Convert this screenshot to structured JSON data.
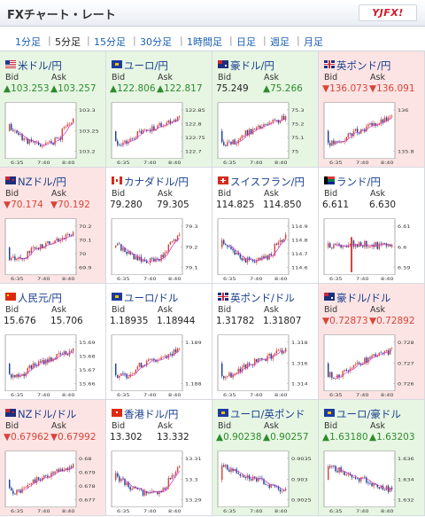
{
  "header": {
    "title": "FXチャート・レート",
    "logo": "YJFX!"
  },
  "tabs": [
    "1分足",
    "5分足",
    "15分足",
    "30分足",
    "1時間足",
    "日足",
    "週足",
    "月足"
  ],
  "active_tab": 1,
  "bid_label": "Bid",
  "ask_label": "Ask",
  "colors": {
    "up": "#2e8b2e",
    "down": "#d8443a",
    "up_bg": "#e7f6e3",
    "down_bg": "#fce4e4",
    "candle_up": "#d8443a",
    "candle_down": "#1c3f9a",
    "ma": "#cc33cc"
  },
  "cells": [
    {
      "name": "米ドル/円",
      "flag": "us",
      "bid": "▲103.253",
      "ask": "▲103.257",
      "trend": "up",
      "chart_data": {
        "type": "candlestick",
        "x_ticks": [
          "6:35",
          "7:40",
          "8:40"
        ],
        "y_ticks": [
          "103.3",
          "103.25",
          "103.2"
        ],
        "seed": 11,
        "shape": "dip"
      }
    },
    {
      "name": "ユーロ/円",
      "flag": "eu",
      "bid": "▲122.806",
      "ask": "▲122.817",
      "trend": "up",
      "chart_data": {
        "type": "candlestick",
        "x_ticks": [
          "6:35",
          "7:40",
          "8:40"
        ],
        "y_ticks": [
          "122.85",
          "122.8",
          "122.75",
          "122.7"
        ],
        "seed": 12,
        "shape": "rise"
      }
    },
    {
      "name": "豪ドル/円",
      "flag": "au",
      "bid": "75.249",
      "ask": "▲75.266",
      "trend": "up",
      "chart_data": {
        "type": "candlestick",
        "x_ticks": [
          "6:35",
          "7:40",
          "8:40"
        ],
        "y_ticks": [
          "75.3",
          "75.2",
          "75.1",
          "75"
        ],
        "seed": 13,
        "shape": "rise"
      }
    },
    {
      "name": "英ポンド/円",
      "flag": "gb",
      "bid": "▼136.073",
      "ask": "▼136.091",
      "trend": "down",
      "chart_data": {
        "type": "candlestick",
        "x_ticks": [
          "6:35",
          "7:40",
          "8:40"
        ],
        "y_ticks": [
          "136",
          "135.8"
        ],
        "seed": 14,
        "shape": "rise"
      }
    },
    {
      "name": "NZドル/円",
      "flag": "nz",
      "bid": "▼70.174",
      "ask": "▼70.192",
      "trend": "down",
      "chart_data": {
        "type": "candlestick",
        "x_ticks": [
          "6:35",
          "7:40",
          "8:40"
        ],
        "y_ticks": [
          "70.2",
          "70.1",
          "70",
          "69.9"
        ],
        "seed": 21,
        "shape": "rise"
      }
    },
    {
      "name": "カナダドル/円",
      "flag": "ca",
      "bid": "79.280",
      "ask": "79.305",
      "trend": "flat",
      "chart_data": {
        "type": "candlestick",
        "x_ticks": [
          "6:35",
          "7:40",
          "8:40"
        ],
        "y_ticks": [
          "79.3",
          "79.2",
          "79.1"
        ],
        "seed": 22,
        "shape": "dip"
      }
    },
    {
      "name": "スイスフラン/円",
      "flag": "ch",
      "bid": "114.825",
      "ask": "114.850",
      "trend": "flat",
      "chart_data": {
        "type": "candlestick",
        "x_ticks": [
          "6:35",
          "7:40",
          "8:40"
        ],
        "y_ticks": [
          "114.9",
          "114.8",
          "114.7",
          "114.6"
        ],
        "seed": 23,
        "shape": "dip"
      }
    },
    {
      "name": "ランド/円",
      "flag": "za",
      "bid": "6.611",
      "ask": "6.630",
      "trend": "flat",
      "chart_data": {
        "type": "candlestick",
        "x_ticks": [
          "6:35",
          "7:40",
          "8:40"
        ],
        "y_ticks": [
          "6.61",
          "6.6",
          "6.59"
        ],
        "seed": 24,
        "shape": "flat"
      }
    },
    {
      "name": "人民元/円",
      "flag": "cn",
      "bid": "15.676",
      "ask": "15.706",
      "trend": "flat",
      "chart_data": {
        "type": "candlestick",
        "x_ticks": [
          "6:35",
          "7:40",
          "8:40"
        ],
        "y_ticks": [
          "15.69",
          "15.68",
          "15.67",
          "15.66"
        ],
        "seed": 31,
        "shape": "rise"
      }
    },
    {
      "name": "ユーロ/ドル",
      "flag": "eu",
      "bid": "1.18935",
      "ask": "1.18944",
      "trend": "flat",
      "chart_data": {
        "type": "candlestick",
        "x_ticks": [
          "6:35",
          "7:40",
          "8:40"
        ],
        "y_ticks": [
          "1.189",
          "1.188"
        ],
        "seed": 32,
        "shape": "rise"
      }
    },
    {
      "name": "英ポンド/ドル",
      "flag": "gb",
      "bid": "1.31782",
      "ask": "1.31807",
      "trend": "flat",
      "chart_data": {
        "type": "candlestick",
        "x_ticks": [
          "6:35",
          "7:40",
          "8:40"
        ],
        "y_ticks": [
          "1.318",
          "1.316",
          "1.314"
        ],
        "seed": 33,
        "shape": "rise"
      }
    },
    {
      "name": "豪ドル/ドル",
      "flag": "au",
      "bid": "▼0.72873",
      "ask": "▼0.72892",
      "trend": "down",
      "chart_data": {
        "type": "candlestick",
        "x_ticks": [
          "6:35",
          "7:40",
          "8:40"
        ],
        "y_ticks": [
          "0.728",
          "0.727",
          "0.726"
        ],
        "seed": 34,
        "shape": "rise"
      }
    },
    {
      "name": "NZドル/ドル",
      "flag": "nz",
      "bid": "▼0.67962",
      "ask": "▼0.67992",
      "trend": "down",
      "chart_data": {
        "type": "candlestick",
        "x_ticks": [
          "6:35",
          "7:40",
          "8:40"
        ],
        "y_ticks": [
          "0.68",
          "0.679",
          "0.678",
          "0.677"
        ],
        "seed": 41,
        "shape": "rise"
      }
    },
    {
      "name": "香港ドル/円",
      "flag": "hk",
      "bid": "13.302",
      "ask": "13.332",
      "trend": "flat",
      "chart_data": {
        "type": "candlestick",
        "x_ticks": [
          "6:35",
          "7:40",
          "8:40"
        ],
        "y_ticks": [
          "13.31",
          "13.3",
          "13.29"
        ],
        "seed": 42,
        "shape": "dip"
      }
    },
    {
      "name": "ユーロ/英ポンド",
      "flag": "eu",
      "bid": "▲0.90238",
      "ask": "▲0.90257",
      "trend": "up",
      "chart_data": {
        "type": "candlestick",
        "x_ticks": [
          "6:35",
          "7:40",
          "8:40"
        ],
        "y_ticks": [
          "0.9035",
          "0.903",
          "0.9025"
        ],
        "seed": 43,
        "shape": "fall"
      }
    },
    {
      "name": "ユーロ/豪ドル",
      "flag": "eu",
      "bid": "▲1.63180",
      "ask": "▲1.63203",
      "trend": "up",
      "chart_data": {
        "type": "candlestick",
        "x_ticks": [
          "6:35",
          "7:40",
          "8:40"
        ],
        "y_ticks": [
          "1.636",
          "1.634",
          "1.632"
        ],
        "seed": 44,
        "shape": "fall"
      }
    }
  ]
}
